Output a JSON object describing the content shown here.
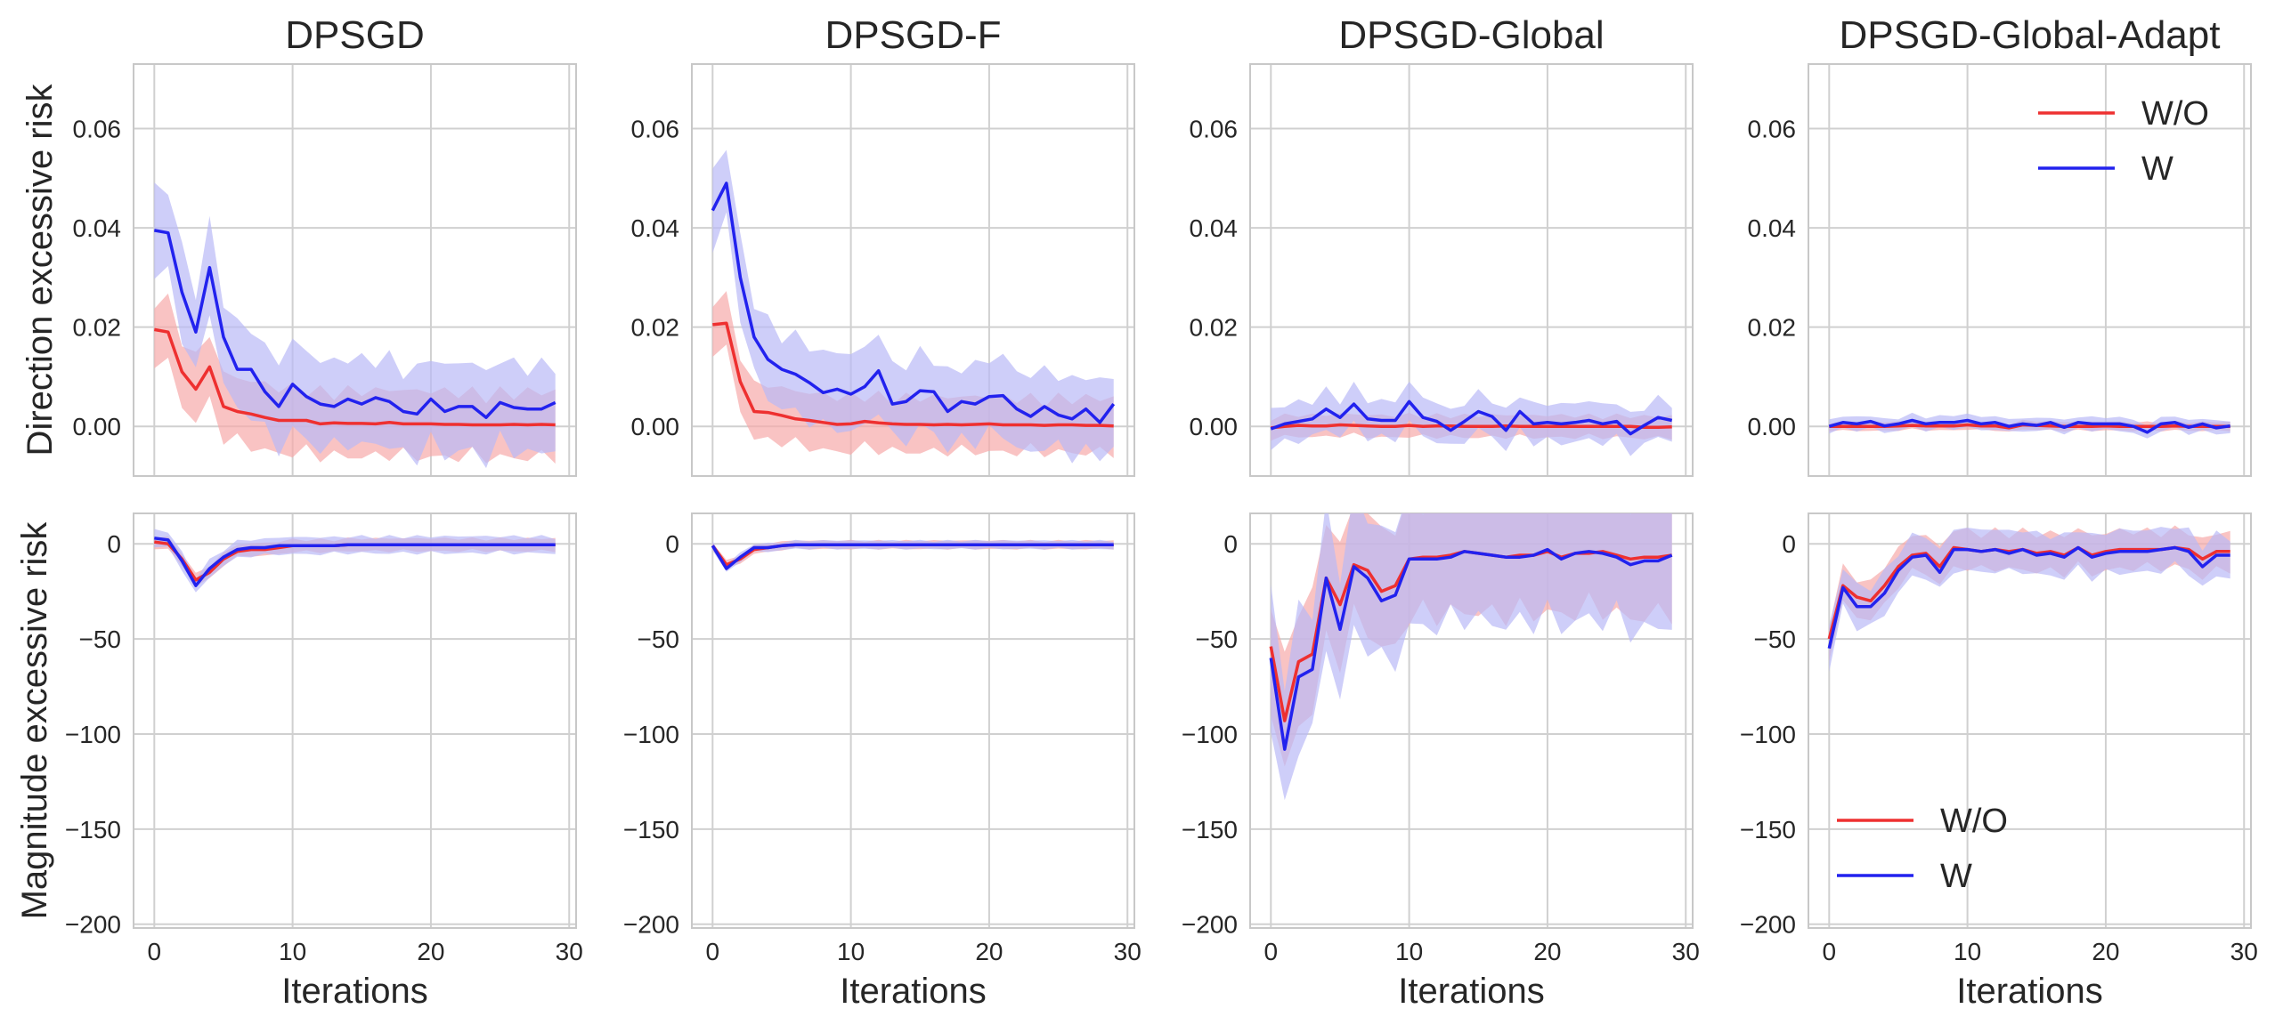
{
  "colors": {
    "wo": "#ee3030",
    "w": "#2222ee",
    "wo_band": "#f6a9a9",
    "w_band": "#b9b9f6",
    "grid": "#d0d0d0",
    "frame": "#c8c8c8"
  },
  "labels": {
    "titles": [
      "DPSGD",
      "DPSGD-F",
      "DPSGD-Global",
      "DPSGD-Global-Adapt"
    ],
    "ylabel_top": "Direction excessive risk",
    "ylabel_bottom": "Magnitude excessive risk",
    "xlabel": "Iterations",
    "legend_wo": "W/O",
    "legend_w": "W"
  },
  "chart_data": {
    "type": "line",
    "x": [
      0,
      1,
      2,
      3,
      4,
      5,
      6,
      7,
      8,
      9,
      10,
      11,
      12,
      13,
      14,
      15,
      16,
      17,
      18,
      19,
      20,
      21,
      22,
      23,
      24,
      25,
      26,
      27,
      28,
      29
    ],
    "xlim": [
      -1.5,
      30.5
    ],
    "xticks": [
      0,
      10,
      20,
      30
    ],
    "xtick_labels": [
      "0",
      "10",
      "20",
      "30"
    ],
    "top_row": {
      "ylabel": "Direction excessive risk",
      "ylim": [
        -0.01,
        0.073
      ],
      "yticks": [
        0,
        0.02,
        0.04,
        0.06
      ],
      "ytick_labels": [
        "0.00",
        "0.02",
        "0.04",
        "0.06"
      ]
    },
    "bottom_row": {
      "ylabel": "Magnitude excessive risk",
      "ylim": [
        -202,
        16
      ],
      "yticks": [
        0,
        -50,
        -100,
        -150,
        -200
      ],
      "ytick_labels": [
        "0",
        "−50",
        "−100",
        "−150",
        "−200"
      ]
    },
    "panels": [
      {
        "title": "DPSGD",
        "row": "top",
        "series": [
          {
            "name": "W/O",
            "values": [
              0.0195,
              0.019,
              0.011,
              0.0075,
              0.012,
              0.004,
              0.003,
              0.0025,
              0.0018,
              0.0012,
              0.0012,
              0.0012,
              0.0005,
              0.0007,
              0.0006,
              0.0006,
              0.0005,
              0.0008,
              0.0005,
              0.0005,
              0.0005,
              0.0004,
              0.0004,
              0.0003,
              0.0003,
              0.0003,
              0.0004,
              0.0003,
              0.0004,
              0.0003
            ],
            "band": 0.006
          },
          {
            "name": "W",
            "values": [
              0.0395,
              0.039,
              0.027,
              0.019,
              0.032,
              0.018,
              0.0115,
              0.0115,
              0.007,
              0.004,
              0.0085,
              0.006,
              0.0045,
              0.004,
              0.0055,
              0.0045,
              0.0058,
              0.005,
              0.003,
              0.0025,
              0.0055,
              0.003,
              0.004,
              0.004,
              0.0018,
              0.0048,
              0.0038,
              0.0035,
              0.0035,
              0.0048
            ],
            "band": 0.008
          }
        ]
      },
      {
        "title": "DPSGD-F",
        "row": "top",
        "series": [
          {
            "name": "W/O",
            "values": [
              0.0205,
              0.0208,
              0.009,
              0.003,
              0.0028,
              0.0022,
              0.0015,
              0.0012,
              0.0008,
              0.0004,
              0.0005,
              0.001,
              0.0007,
              0.0005,
              0.0004,
              0.0004,
              0.0003,
              0.0004,
              0.0003,
              0.0004,
              0.0005,
              0.0003,
              0.0003,
              0.0003,
              0.0002,
              0.0003,
              0.0003,
              0.0002,
              0.0002,
              0.0001
            ],
            "band": 0.005
          },
          {
            "name": "W",
            "values": [
              0.0435,
              0.049,
              0.03,
              0.018,
              0.0135,
              0.0115,
              0.0105,
              0.0088,
              0.0068,
              0.0075,
              0.0065,
              0.008,
              0.0112,
              0.0045,
              0.005,
              0.0072,
              0.007,
              0.003,
              0.005,
              0.0045,
              0.006,
              0.0062,
              0.0035,
              0.002,
              0.004,
              0.0023,
              0.0015,
              0.0035,
              0.0008,
              0.0045
            ],
            "band": 0.007
          }
        ]
      },
      {
        "title": "DPSGD-Global",
        "row": "top",
        "series": [
          {
            "name": "W/O",
            "values": [
              -0.0003,
              0.0,
              0.0002,
              0.0001,
              0.0001,
              0.0003,
              0.0002,
              0.0001,
              0.0,
              0.0,
              0.0002,
              0.0,
              0.0001,
              0.0001,
              0.0,
              0.0,
              0.0,
              0.0001,
              0.0,
              0.0,
              0.0,
              0.0,
              0.0,
              0.0,
              0.0,
              0.0,
              0.0,
              -0.0002,
              -0.0002,
              -0.0001
            ],
            "band": 0.002
          },
          {
            "name": "W",
            "values": [
              -0.0005,
              0.0005,
              0.001,
              0.0015,
              0.0035,
              0.0018,
              0.0045,
              0.0015,
              0.0012,
              0.0012,
              0.005,
              0.0018,
              0.001,
              -0.0008,
              0.001,
              0.003,
              0.002,
              -0.0008,
              0.003,
              0.0005,
              0.0008,
              0.0005,
              0.0008,
              0.0012,
              0.0005,
              0.001,
              -0.0015,
              0.0002,
              0.0018,
              0.0012
            ],
            "band": 0.0035
          }
        ]
      },
      {
        "title": "DPSGD-Global-Adapt",
        "row": "top",
        "legend": true,
        "series": [
          {
            "name": "W/O",
            "values": [
              0.0,
              0.0,
              0.0,
              0.0,
              0.0,
              0.0001,
              0.0002,
              0.0001,
              0.0001,
              0.0001,
              0.0003,
              0.0001,
              0.0001,
              -0.0003,
              0.0003,
              0.0002,
              0.0001,
              0.0,
              0.0,
              0.0,
              0.0001,
              0.0,
              0.0,
              0.0,
              0.0,
              0.0001,
              0.0,
              0.0,
              0.0,
              0.0
            ],
            "band": 0.0008
          },
          {
            "name": "W",
            "values": [
              0.0,
              0.0008,
              0.0005,
              0.001,
              0.0001,
              0.0005,
              0.0012,
              0.0005,
              0.0008,
              0.0008,
              0.0012,
              0.0005,
              0.0008,
              0.0,
              0.0005,
              0.0002,
              0.0008,
              -0.0002,
              0.0008,
              0.0005,
              0.0005,
              0.0005,
              0.0,
              -0.0012,
              0.0005,
              0.0008,
              -0.0002,
              0.0005,
              -0.0003,
              0.0001
            ],
            "band": 0.0012
          }
        ]
      },
      {
        "title": "DPSGD",
        "row": "bottom",
        "series": [
          {
            "name": "W/O",
            "values": [
              1,
              0,
              -8,
              -19,
              -15,
              -8,
              -4,
              -3,
              -3,
              -2,
              -1,
              -1,
              -1,
              -1,
              -0.5,
              -0.5,
              -0.5,
              -0.5,
              -0.5,
              -0.5,
              -0.5,
              -0.5,
              -0.5,
              -0.5,
              -0.5,
              -0.5,
              -0.5,
              -0.5,
              -0.5,
              -0.5
            ],
            "band": 3
          },
          {
            "name": "W",
            "values": [
              3,
              2,
              -9,
              -22,
              -13,
              -7,
              -3,
              -2,
              -2,
              -1,
              -1,
              -1,
              -1,
              -1,
              -0.5,
              -0.5,
              -0.5,
              -0.5,
              -0.5,
              -0.5,
              -0.5,
              -0.5,
              -0.5,
              -0.5,
              -0.5,
              -0.5,
              -0.5,
              -0.5,
              -0.5,
              -0.5
            ],
            "band": 4
          }
        ]
      },
      {
        "title": "DPSGD-F",
        "row": "bottom",
        "series": [
          {
            "name": "W/O",
            "values": [
              -1,
              -11,
              -8,
              -3,
              -2,
              -1,
              -0.5,
              -0.5,
              -0.5,
              -0.5,
              -0.5,
              -0.5,
              -0.5,
              -0.5,
              -0.5,
              -0.5,
              -0.5,
              -0.5,
              -0.5,
              -0.5,
              -0.5,
              -0.5,
              -0.5,
              -0.5,
              -0.5,
              -0.5,
              -0.5,
              -0.5,
              -0.5,
              -0.5
            ],
            "band": 2
          },
          {
            "name": "W",
            "values": [
              -1,
              -13,
              -7,
              -2,
              -2,
              -1,
              -0.5,
              -0.5,
              -0.5,
              -0.5,
              -0.5,
              -0.5,
              -0.5,
              -0.5,
              -0.5,
              -0.5,
              -0.5,
              -0.5,
              -0.5,
              -0.5,
              -0.5,
              -0.5,
              -0.5,
              -0.5,
              -0.5,
              -0.5,
              -0.5,
              -0.5,
              -0.5,
              -0.5
            ],
            "band": 2
          }
        ]
      },
      {
        "title": "DPSGD-Global",
        "row": "bottom",
        "series": [
          {
            "name": "W/O",
            "values": [
              -54,
              -93,
              -62,
              -58,
              -18,
              -32,
              -11,
              -14,
              -25,
              -22,
              -8,
              -7,
              -7,
              -6,
              -4,
              -5,
              -6,
              -7,
              -6,
              -6,
              -4,
              -7,
              -5,
              -5,
              -4,
              -6,
              -8,
              -7,
              -7,
              -6
            ],
            "band": 28
          },
          {
            "name": "W",
            "values": [
              -60,
              -108,
              -70,
              -66,
              -18,
              -45,
              -12,
              -18,
              -30,
              -27,
              -8,
              -8,
              -8,
              -7,
              -4,
              -5,
              -6,
              -7,
              -7,
              -6,
              -3,
              -8,
              -5,
              -4,
              -5,
              -7,
              -11,
              -9,
              -9,
              -6
            ],
            "band": 32
          }
        ]
      },
      {
        "title": "DPSGD-Global-Adapt",
        "row": "bottom",
        "legend": true,
        "series": [
          {
            "name": "W/O",
            "values": [
              -50,
              -22,
              -28,
              -30,
              -22,
              -12,
              -6,
              -5,
              -12,
              -2,
              -3,
              -4,
              -3,
              -4,
              -3,
              -5,
              -4,
              -6,
              -2,
              -6,
              -4,
              -3,
              -3,
              -3,
              -3,
              -2,
              -3,
              -8,
              -4,
              -4
            ],
            "band": 9
          },
          {
            "name": "W",
            "values": [
              -55,
              -23,
              -33,
              -33,
              -26,
              -14,
              -7,
              -6,
              -15,
              -3,
              -3,
              -4,
              -3,
              -5,
              -3,
              -6,
              -5,
              -7,
              -2,
              -7,
              -5,
              -4,
              -4,
              -4,
              -3,
              -2,
              -4,
              -12,
              -6,
              -6
            ],
            "band": 10
          }
        ]
      }
    ]
  }
}
